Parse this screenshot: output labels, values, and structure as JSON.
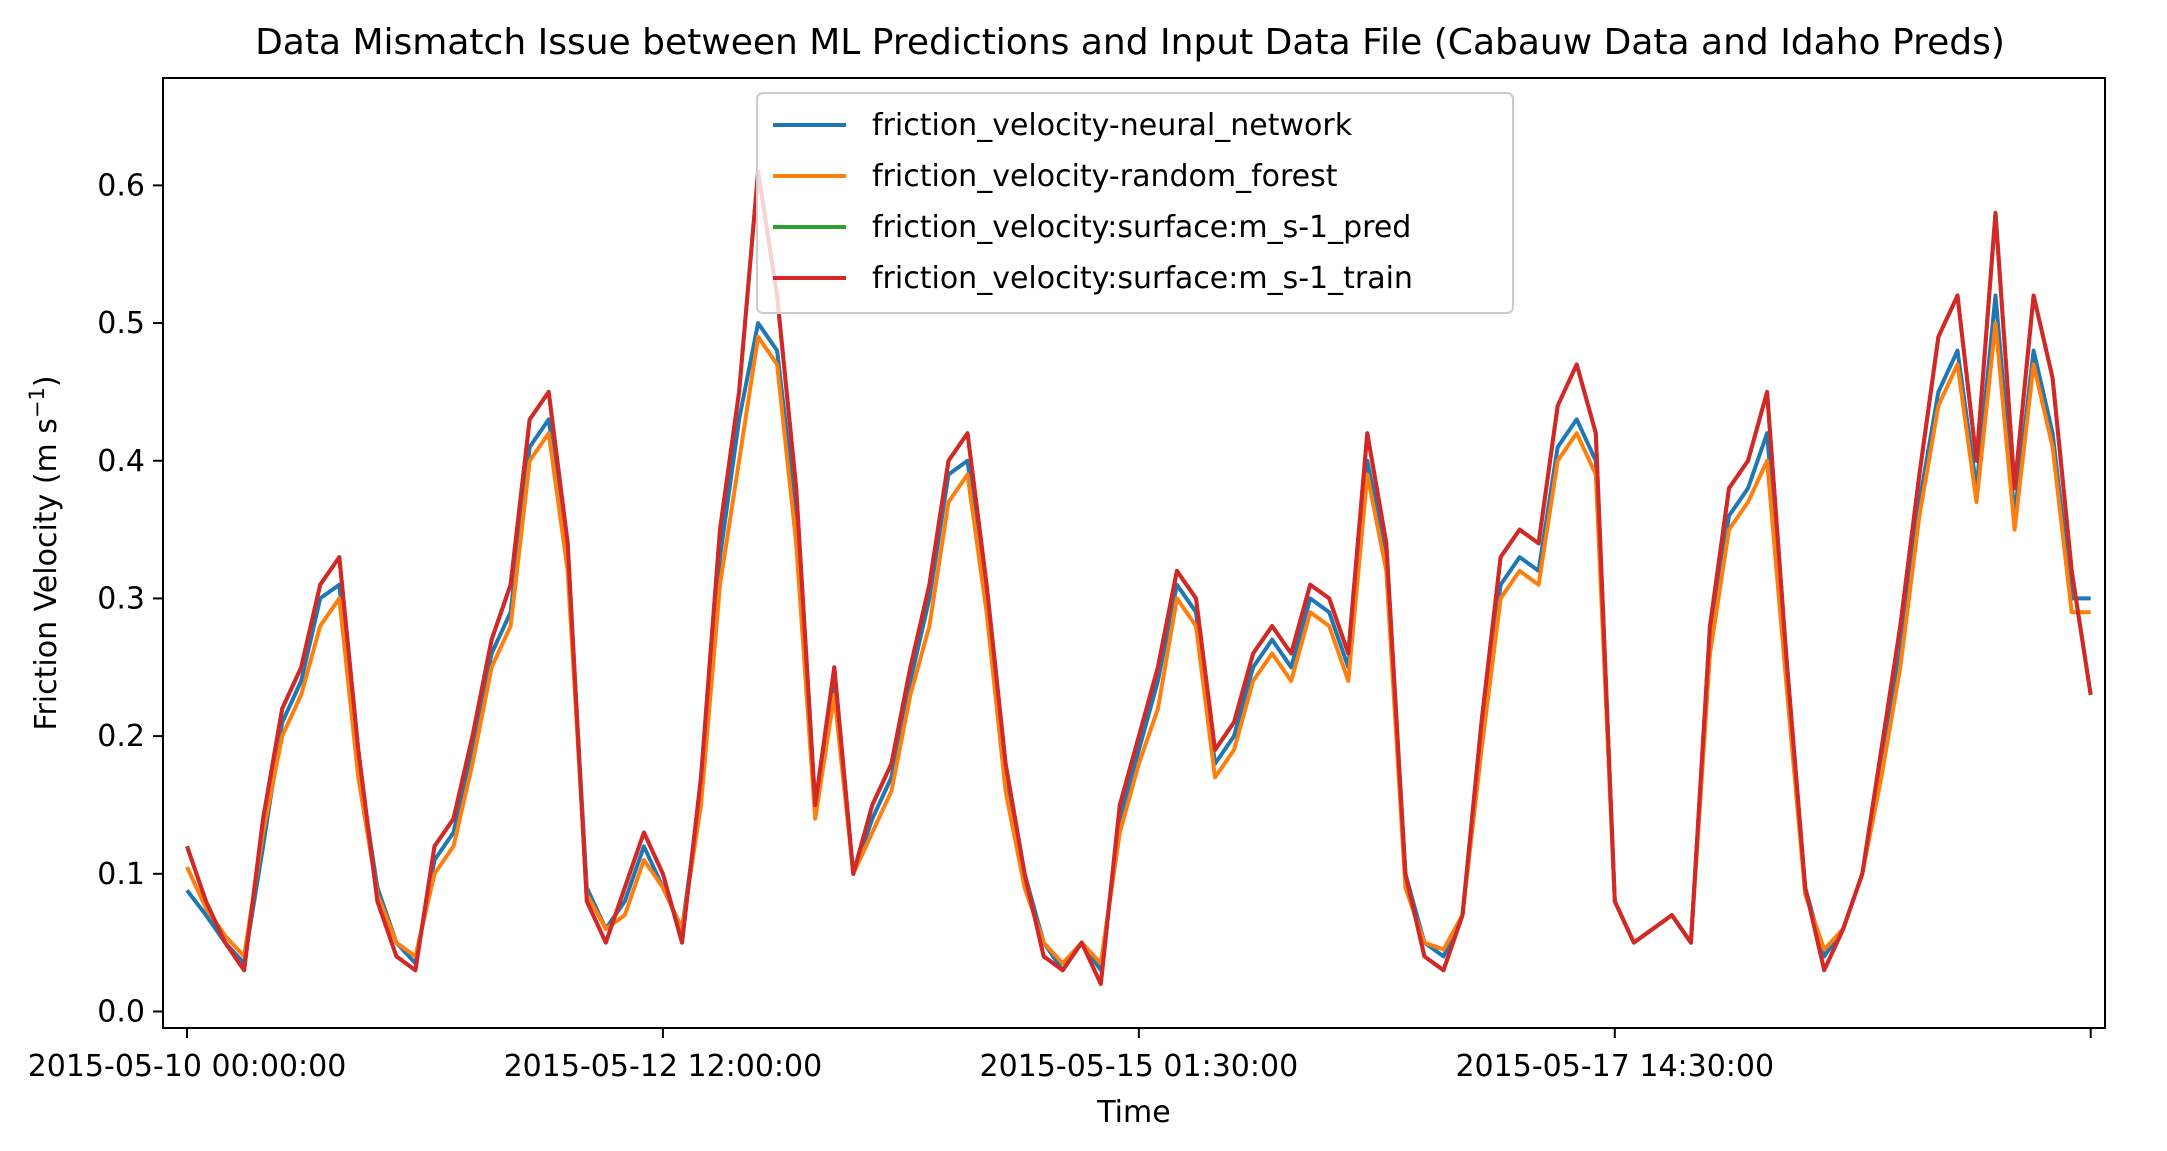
{
  "chart_data": {
    "type": "line",
    "title": "Data Mismatch Issue between ML Predictions and Input Data File (Cabauw Data and Idaho Preds)",
    "xlabel": "Time",
    "ylabel": "Friction Velocity (m s",
    "ylabel_sup": "−1",
    "ylabel_tail": ")",
    "ylim": [
      -0.012,
      0.678
    ],
    "xlim": [
      -2.52,
      201.5
    ],
    "yticks": [
      0.0,
      0.1,
      0.2,
      0.3,
      0.4,
      0.5,
      0.6
    ],
    "ytick_labels": [
      "0.0",
      "0.1",
      "0.2",
      "0.3",
      "0.4",
      "0.5",
      "0.6"
    ],
    "xticks": [
      0,
      50,
      100,
      150,
      200
    ],
    "xtick_labels": [
      "2015-05-10 00:00:00",
      "2015-05-12 12:00:00",
      "2015-05-15 01:30:00",
      "2015-05-17 14:30:00",
      ""
    ],
    "grid": false,
    "legend_position": "upper-center",
    "x": [
      0,
      2,
      4,
      6,
      8,
      10,
      12,
      14,
      16,
      18,
      20,
      22,
      24,
      26,
      28,
      30,
      32,
      34,
      36,
      38,
      40,
      42,
      44,
      46,
      48,
      50,
      52,
      54,
      56,
      58,
      60,
      62,
      64,
      66,
      68,
      70,
      72,
      74,
      76,
      78,
      80,
      82,
      84,
      86,
      88,
      90,
      92,
      94,
      96,
      98,
      100,
      102,
      104,
      106,
      108,
      110,
      112,
      114,
      116,
      118,
      120,
      122,
      124,
      126,
      128,
      130,
      132,
      134,
      136,
      138,
      140,
      142,
      144,
      146,
      148,
      150,
      152,
      154,
      156,
      158,
      160,
      162,
      164,
      166,
      168,
      170,
      172,
      174,
      176,
      178,
      180,
      182,
      184,
      186,
      188,
      190,
      192,
      194,
      196,
      198,
      200
    ],
    "series": [
      {
        "name": "friction_velocity-neural_network",
        "color": "#1f77b4",
        "values": [
          0.088,
          0.07,
          0.05,
          0.035,
          0.12,
          0.21,
          0.24,
          0.3,
          0.31,
          0.18,
          0.09,
          0.05,
          0.035,
          0.11,
          0.13,
          0.19,
          0.26,
          0.29,
          0.41,
          0.43,
          0.33,
          0.09,
          0.06,
          0.08,
          0.12,
          0.09,
          0.06,
          0.16,
          0.33,
          0.43,
          0.5,
          0.48,
          0.36,
          0.15,
          0.24,
          0.1,
          0.14,
          0.17,
          0.24,
          0.3,
          0.39,
          0.4,
          0.3,
          0.17,
          0.1,
          0.05,
          0.03,
          0.05,
          0.03,
          0.14,
          0.19,
          0.24,
          0.31,
          0.29,
          0.18,
          0.2,
          0.25,
          0.27,
          0.25,
          0.3,
          0.29,
          0.25,
          0.4,
          0.33,
          0.1,
          0.05,
          0.04,
          0.07,
          0.2,
          0.31,
          0.33,
          0.32,
          0.41,
          0.43,
          0.4,
          0.08,
          0.05,
          0.06,
          0.07,
          0.05,
          0.27,
          0.36,
          0.38,
          0.42,
          0.25,
          0.09,
          0.04,
          0.06,
          0.1,
          0.18,
          0.26,
          0.37,
          0.45,
          0.48,
          0.38,
          0.52,
          0.36,
          0.48,
          0.42,
          0.3,
          0.3
        ]
      },
      {
        "name": "friction_velocity-random_forest",
        "color": "#ff7f0e",
        "values": [
          0.105,
          0.075,
          0.055,
          0.04,
          0.13,
          0.2,
          0.23,
          0.28,
          0.3,
          0.17,
          0.085,
          0.05,
          0.04,
          0.1,
          0.12,
          0.18,
          0.25,
          0.28,
          0.4,
          0.42,
          0.32,
          0.085,
          0.06,
          0.07,
          0.11,
          0.09,
          0.06,
          0.15,
          0.31,
          0.4,
          0.49,
          0.47,
          0.34,
          0.14,
          0.23,
          0.1,
          0.13,
          0.16,
          0.23,
          0.28,
          0.37,
          0.39,
          0.29,
          0.16,
          0.09,
          0.05,
          0.035,
          0.05,
          0.035,
          0.13,
          0.18,
          0.22,
          0.3,
          0.28,
          0.17,
          0.19,
          0.24,
          0.26,
          0.24,
          0.29,
          0.28,
          0.24,
          0.39,
          0.32,
          0.09,
          0.05,
          0.045,
          0.07,
          0.19,
          0.3,
          0.32,
          0.31,
          0.4,
          0.42,
          0.39,
          0.08,
          0.05,
          0.06,
          0.07,
          0.05,
          0.26,
          0.35,
          0.37,
          0.4,
          0.24,
          0.085,
          0.045,
          0.06,
          0.1,
          0.17,
          0.25,
          0.36,
          0.44,
          0.47,
          0.37,
          0.5,
          0.35,
          0.47,
          0.41,
          0.29,
          0.29
        ]
      },
      {
        "name": "friction_velocity:surface:m_s-1_pred",
        "color": "#2ca02c",
        "values": [
          0.12,
          0.08,
          0.05,
          0.03,
          0.14,
          0.22,
          0.25,
          0.31,
          0.33,
          0.19,
          0.08,
          0.04,
          0.03,
          0.12,
          0.14,
          0.2,
          0.27,
          0.31,
          0.43,
          0.45,
          0.34,
          0.08,
          0.05,
          0.09,
          0.13,
          0.1,
          0.05,
          0.17,
          0.35,
          0.45,
          0.61,
          0.52,
          0.38,
          0.15,
          0.25,
          0.1,
          0.15,
          0.18,
          0.25,
          0.31,
          0.4,
          0.42,
          0.31,
          0.18,
          0.1,
          0.04,
          0.03,
          0.05,
          0.02,
          0.15,
          0.2,
          0.25,
          0.32,
          0.3,
          0.19,
          0.21,
          0.26,
          0.28,
          0.26,
          0.31,
          0.3,
          0.26,
          0.42,
          0.34,
          0.1,
          0.04,
          0.03,
          0.07,
          0.21,
          0.33,
          0.35,
          0.34,
          0.44,
          0.47,
          0.42,
          0.08,
          0.05,
          0.06,
          0.07,
          0.05,
          0.28,
          0.38,
          0.4,
          0.45,
          0.26,
          0.09,
          0.03,
          0.06,
          0.1,
          0.19,
          0.28,
          0.39,
          0.49,
          0.52,
          0.4,
          0.58,
          0.38,
          0.52,
          0.46,
          0.32,
          0.23
        ]
      },
      {
        "name": "friction_velocity:surface:m_s-1_train",
        "color": "#d62728",
        "values": [
          0.12,
          0.08,
          0.05,
          0.03,
          0.14,
          0.22,
          0.25,
          0.31,
          0.33,
          0.19,
          0.08,
          0.04,
          0.03,
          0.12,
          0.14,
          0.2,
          0.27,
          0.31,
          0.43,
          0.45,
          0.34,
          0.08,
          0.05,
          0.09,
          0.13,
          0.1,
          0.05,
          0.17,
          0.35,
          0.45,
          0.61,
          0.52,
          0.38,
          0.15,
          0.25,
          0.1,
          0.15,
          0.18,
          0.25,
          0.31,
          0.4,
          0.42,
          0.31,
          0.18,
          0.1,
          0.04,
          0.03,
          0.05,
          0.02,
          0.15,
          0.2,
          0.25,
          0.32,
          0.3,
          0.19,
          0.21,
          0.26,
          0.28,
          0.26,
          0.31,
          0.3,
          0.26,
          0.42,
          0.34,
          0.1,
          0.04,
          0.03,
          0.07,
          0.21,
          0.33,
          0.35,
          0.34,
          0.44,
          0.47,
          0.42,
          0.08,
          0.05,
          0.06,
          0.07,
          0.05,
          0.28,
          0.38,
          0.4,
          0.45,
          0.26,
          0.09,
          0.03,
          0.06,
          0.1,
          0.19,
          0.28,
          0.39,
          0.49,
          0.52,
          0.4,
          0.58,
          0.38,
          0.52,
          0.46,
          0.32,
          0.23
        ]
      }
    ]
  }
}
